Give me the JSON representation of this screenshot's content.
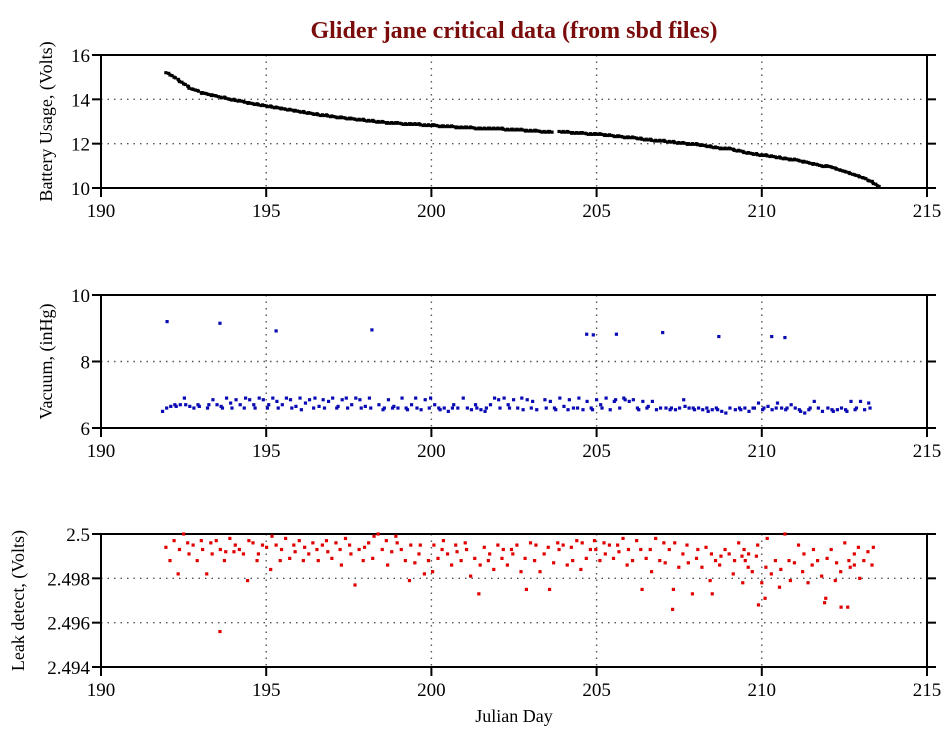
{
  "chart_data": {
    "type": "scatter",
    "title": "Glider jane critical data (from sbd files)",
    "title_color": "#7a0c0c",
    "xlabel": "Julian Day",
    "panels": [
      {
        "name": "battery",
        "ylabel": "Battery Usage, (Volts)",
        "color": "#000000",
        "xlim": [
          190,
          215
        ],
        "ylim": [
          10,
          16
        ],
        "xticks": [
          "190",
          "195",
          "200",
          "205",
          "210",
          "215"
        ],
        "yticks": [
          "10",
          "12",
          "14",
          "16"
        ],
        "ytick_values": [
          10,
          12,
          14,
          16
        ],
        "grid": true,
        "series": {
          "x_start": 192.0,
          "x_step": 0.1,
          "values": [
            15.2,
            15.1,
            15.0,
            14.9,
            14.8,
            14.7,
            14.6,
            14.5,
            14.45,
            14.4,
            14.3,
            14.3,
            14.25,
            14.2,
            14.2,
            14.15,
            14.1,
            14.1,
            14.05,
            14.0,
            14.0,
            13.95,
            13.95,
            13.9,
            13.85,
            13.85,
            13.8,
            13.8,
            13.75,
            13.75,
            13.7,
            13.7,
            13.65,
            13.65,
            13.6,
            13.6,
            13.55,
            13.55,
            13.5,
            13.5,
            13.45,
            13.45,
            13.4,
            13.4,
            13.35,
            13.35,
            13.3,
            13.3,
            13.3,
            13.25,
            13.25,
            13.2,
            13.2,
            13.2,
            13.15,
            13.15,
            13.15,
            13.1,
            13.1,
            13.1,
            13.05,
            13.05,
            13.05,
            13.0,
            13.0,
            13.0,
            12.95,
            12.95,
            12.95,
            12.95,
            12.95,
            12.9,
            12.9,
            12.9,
            12.9,
            12.9,
            12.9,
            12.85,
            12.85,
            12.85,
            12.85,
            12.85,
            12.8,
            12.8,
            12.8,
            12.8,
            12.8,
            12.75,
            12.75,
            12.75,
            12.75,
            12.75,
            12.75,
            12.7,
            12.7,
            12.7,
            12.7,
            12.7,
            12.7,
            12.7,
            12.7,
            12.7,
            12.65,
            12.65,
            12.65,
            12.65,
            12.65,
            12.65,
            12.6,
            12.6,
            12.6,
            12.6,
            12.6,
            12.55,
            12.55,
            12.55,
            12.55,
            null,
            null,
            12.55,
            12.55,
            12.55,
            12.5,
            12.5,
            12.5,
            12.5,
            12.5,
            12.45,
            12.45,
            12.45,
            12.45,
            12.45,
            12.4,
            12.4,
            12.4,
            12.35,
            12.35,
            12.35,
            12.3,
            12.3,
            12.3,
            12.3,
            12.25,
            12.25,
            12.2,
            12.2,
            12.2,
            12.15,
            12.15,
            12.15,
            12.15,
            12.1,
            12.1,
            12.1,
            12.05,
            12.05,
            12.05,
            12.0,
            12.0,
            12.0,
            12.0,
            11.95,
            11.95,
            11.9,
            11.9,
            11.85,
            11.85,
            11.8,
            11.8,
            11.8,
            11.8,
            11.75,
            11.7,
            11.7,
            11.65,
            11.6,
            11.6,
            11.55,
            11.55,
            11.5,
            11.5,
            11.5,
            11.45,
            11.45,
            11.4,
            11.4,
            11.35,
            11.35,
            11.3,
            11.3,
            11.3,
            11.25,
            11.2,
            11.2,
            11.15,
            11.1,
            11.1,
            11.05,
            11.0,
            11.0,
            11.0,
            10.95,
            10.9,
            10.85,
            10.8,
            10.75,
            10.7,
            10.65,
            10.6,
            10.55,
            10.5,
            10.45,
            10.35,
            10.3,
            10.2,
            10.1
          ]
        },
        "outliers": []
      },
      {
        "name": "vacuum",
        "ylabel": "Vacuum, (inHg)",
        "color": "#0a0ab4",
        "xlim": [
          190,
          215
        ],
        "ylim": [
          6,
          10
        ],
        "xticks": [
          "190",
          "195",
          "200",
          "205",
          "210",
          "215"
        ],
        "yticks": [
          "6",
          "8",
          "10"
        ],
        "ytick_values": [
          6,
          8,
          10
        ],
        "grid": true,
        "series": {
          "x_start": 191.9,
          "x_step": 0.1,
          "values": [
            6.5,
            6.6,
            6.65,
            6.7,
            6.65,
            6.7,
            6.9,
            6.7,
            6.65,
            6.6,
            6.7,
            6.65,
            null,
            6.6,
            6.7,
            6.85,
            6.7,
            6.65,
            6.6,
            6.9,
            6.75,
            6.6,
            6.85,
            6.7,
            6.6,
            6.9,
            6.85,
            6.7,
            6.6,
            6.9,
            6.85,
            6.6,
            6.7,
            6.9,
            6.8,
            6.6,
            6.7,
            6.9,
            6.85,
            6.6,
            6.65,
            6.9,
            6.55,
            6.75,
            6.85,
            6.6,
            6.9,
            6.65,
            6.85,
            6.6,
            6.8,
            6.9,
            6.6,
            6.65,
            6.85,
            6.9,
            6.6,
            6.7,
            6.9,
            6.85,
            6.6,
            6.65,
            6.9,
            6.6,
            null,
            6.7,
            6.55,
            6.6,
            6.85,
            6.6,
            6.65,
            6.6,
            6.9,
            6.6,
            6.55,
            6.7,
            6.9,
            6.6,
            6.55,
            6.85,
            6.6,
            6.9,
            6.7,
            6.6,
            6.55,
            6.6,
            6.5,
            6.6,
            6.7,
            6.6,
            null,
            6.9,
            6.6,
            6.55,
            6.7,
            6.6,
            6.55,
            6.5,
            6.6,
            6.7,
            6.9,
            6.85,
            6.6,
            6.9,
            6.7,
            6.6,
            6.85,
            6.6,
            6.9,
            6.55,
            6.85,
            6.6,
            6.8,
            6.55,
            null,
            6.85,
            6.6,
            6.8,
            6.6,
            6.55,
            6.9,
            6.65,
            6.55,
            6.85,
            6.6,
            6.6,
            6.9,
            6.55,
            6.8,
            6.6,
            6.55,
            6.85,
            6.7,
            6.6,
            6.9,
            6.55,
            6.8,
            6.85,
            6.6,
            6.9,
            6.85,
            6.8,
            6.85,
            6.6,
            6.55,
            6.8,
            6.6,
            6.65,
            6.8,
            6.55,
            6.6,
            null,
            6.6,
            6.55,
            6.6,
            6.55,
            6.6,
            6.85,
            6.65,
            6.6,
            6.6,
            6.55,
            6.6,
            6.55,
            6.6,
            6.5,
            6.55,
            6.6,
            6.55,
            6.5,
            6.45,
            6.6,
            null,
            6.55,
            6.6,
            6.55,
            6.6,
            6.5,
            6.6,
            6.6,
            6.75,
            6.55,
            6.6,
            6.65,
            6.55,
            6.6,
            6.75,
            6.6,
            6.55,
            6.6,
            6.7,
            6.6,
            6.55,
            6.5,
            6.45,
            6.55,
            6.6,
            6.8,
            6.6,
            6.5,
            null,
            6.6,
            6.55,
            6.5,
            6.55,
            6.6,
            6.55,
            6.5,
            6.8,
            6.55,
            6.6,
            6.8,
            6.55,
            6.75,
            6.6
          ]
        },
        "outliers": [
          [
            192.0,
            9.2
          ],
          [
            193.6,
            9.15
          ],
          [
            195.3,
            8.92
          ],
          [
            198.2,
            8.95
          ],
          [
            204.7,
            8.82
          ],
          [
            204.9,
            8.8
          ],
          [
            205.6,
            8.82
          ],
          [
            207.0,
            8.87
          ],
          [
            208.7,
            8.75
          ],
          [
            210.3,
            8.75
          ],
          [
            210.7,
            8.72
          ]
        ]
      },
      {
        "name": "leak",
        "ylabel": "Leak detect, (Volts)",
        "color": "#e00000",
        "xlim": [
          190,
          215
        ],
        "ylim": [
          2.494,
          2.5
        ],
        "xticks": [
          "190",
          "195",
          "200",
          "205",
          "210",
          "215"
        ],
        "yticks": [
          "2.494",
          "2.496",
          "2.498",
          "2.5"
        ],
        "ytick_values": [
          2.494,
          2.496,
          2.498,
          2.5
        ],
        "grid": true,
        "series": {
          "x_start": 192.0,
          "x_step": 0.1,
          "values": [
            2.4994,
            2.4988,
            2.4997,
            2.4982,
            2.4993,
            2.5,
            2.4996,
            2.4991,
            2.4995,
            2.4988,
            2.4997,
            2.4993,
            2.4982,
            2.4996,
            2.4991,
            2.4997,
            2.4993,
            2.4988,
            2.4992,
            2.4998,
            2.4992,
            2.4995,
            2.4993,
            2.4991,
            2.4979,
            2.4997,
            2.4996,
            2.4988,
            2.4991,
            2.4995,
            2.4994,
            2.4984,
            2.4999,
            2.4995,
            2.4988,
            2.4993,
            2.4998,
            2.4989,
            2.4995,
            2.4992,
            2.4997,
            2.4988,
            2.4994,
            2.4991,
            2.4996,
            2.4993,
            2.4988,
            2.4995,
            2.4997,
            2.4992,
            2.4989,
            2.4996,
            2.4993,
            2.4986,
            2.4998,
            2.4995,
            2.4991,
            2.4977,
            2.4993,
            2.4988,
            2.4994,
            2.4996,
            2.4989,
            2.4999,
            2.5,
            2.4993,
            2.4997,
            2.4986,
            2.4992,
            2.4999,
            2.4996,
            2.4993,
            2.4988,
            2.4979,
            2.4995,
            2.4987,
            2.4991,
            2.4995,
            2.4982,
            2.4988,
            2.4983,
            2.4995,
            2.4989,
            2.4993,
            2.4997,
            2.4991,
            2.4986,
            2.4995,
            2.4992,
            2.4988,
            2.4996,
            2.4993,
            2.4981,
            2.4989,
            2.4973,
            2.4986,
            2.4994,
            2.4988,
            2.4991,
            2.4984,
            2.4995,
            2.4989,
            2.4993,
            2.4986,
            2.4993,
            2.4991,
            2.4995,
            2.4983,
            2.4989,
            2.4975,
            2.4996,
            2.4988,
            2.4995,
            2.4983,
            2.4991,
            2.4994,
            2.4975,
            2.4987,
            2.4996,
            2.4993,
            2.4995,
            2.4986,
            2.4994,
            2.4988,
            2.4997,
            2.4984,
            2.4996,
            2.4989,
            2.4993,
            2.4997,
            2.4993,
            2.4988,
            2.4996,
            2.4991,
            2.4995,
            2.4989,
            2.4995,
            2.4992,
            2.4998,
            2.4986,
            2.4993,
            2.4988,
            2.4997,
            2.4993,
            2.4975,
            2.4989,
            2.4993,
            2.4983,
            2.4998,
            2.4988,
            2.4996,
            2.4987,
            2.4993,
            2.4975,
            2.4996,
            2.4985,
            2.4991,
            2.4995,
            2.4987,
            2.4973,
            2.4989,
            2.4993,
            2.4985,
            2.4994,
            2.4979,
            2.4991,
            2.4988,
            2.4986,
            2.499,
            2.4993,
            2.4991,
            2.4982,
            2.4988,
            2.4996,
            2.4978,
            2.4993,
            2.4985,
            2.4983,
            2.499,
            2.4995,
            2.4978,
            2.4985,
            2.4998,
            2.4982,
            2.4988,
            2.4976,
            2.4984,
            2.5,
            2.4988,
            2.4979,
            2.4987,
            2.4995,
            2.4983,
            2.4991,
            2.4978,
            2.4986,
            2.4993,
            2.4988,
            2.4981,
            2.4971,
            2.4989,
            2.4993,
            2.4979,
            2.4987,
            2.4983,
            2.4996,
            2.4988,
            2.4985,
            2.4991,
            2.4994,
            2.498,
            2.4988,
            2.4992,
            2.4986,
            2.4994
          ]
        },
        "outliers": [
          [
            193.6,
            2.4956
          ],
          [
            207.3,
            2.4966
          ],
          [
            208.5,
            2.4973
          ],
          [
            209.9,
            2.4968
          ],
          [
            210.1,
            2.4971
          ],
          [
            211.9,
            2.4969
          ],
          [
            212.4,
            2.4967
          ],
          [
            212.6,
            2.4967
          ],
          [
            212.8,
            2.4986
          ],
          [
            209.4,
            2.499
          ],
          [
            209.6,
            2.4991
          ],
          [
            209.5,
            2.4988
          ]
        ]
      }
    ]
  }
}
